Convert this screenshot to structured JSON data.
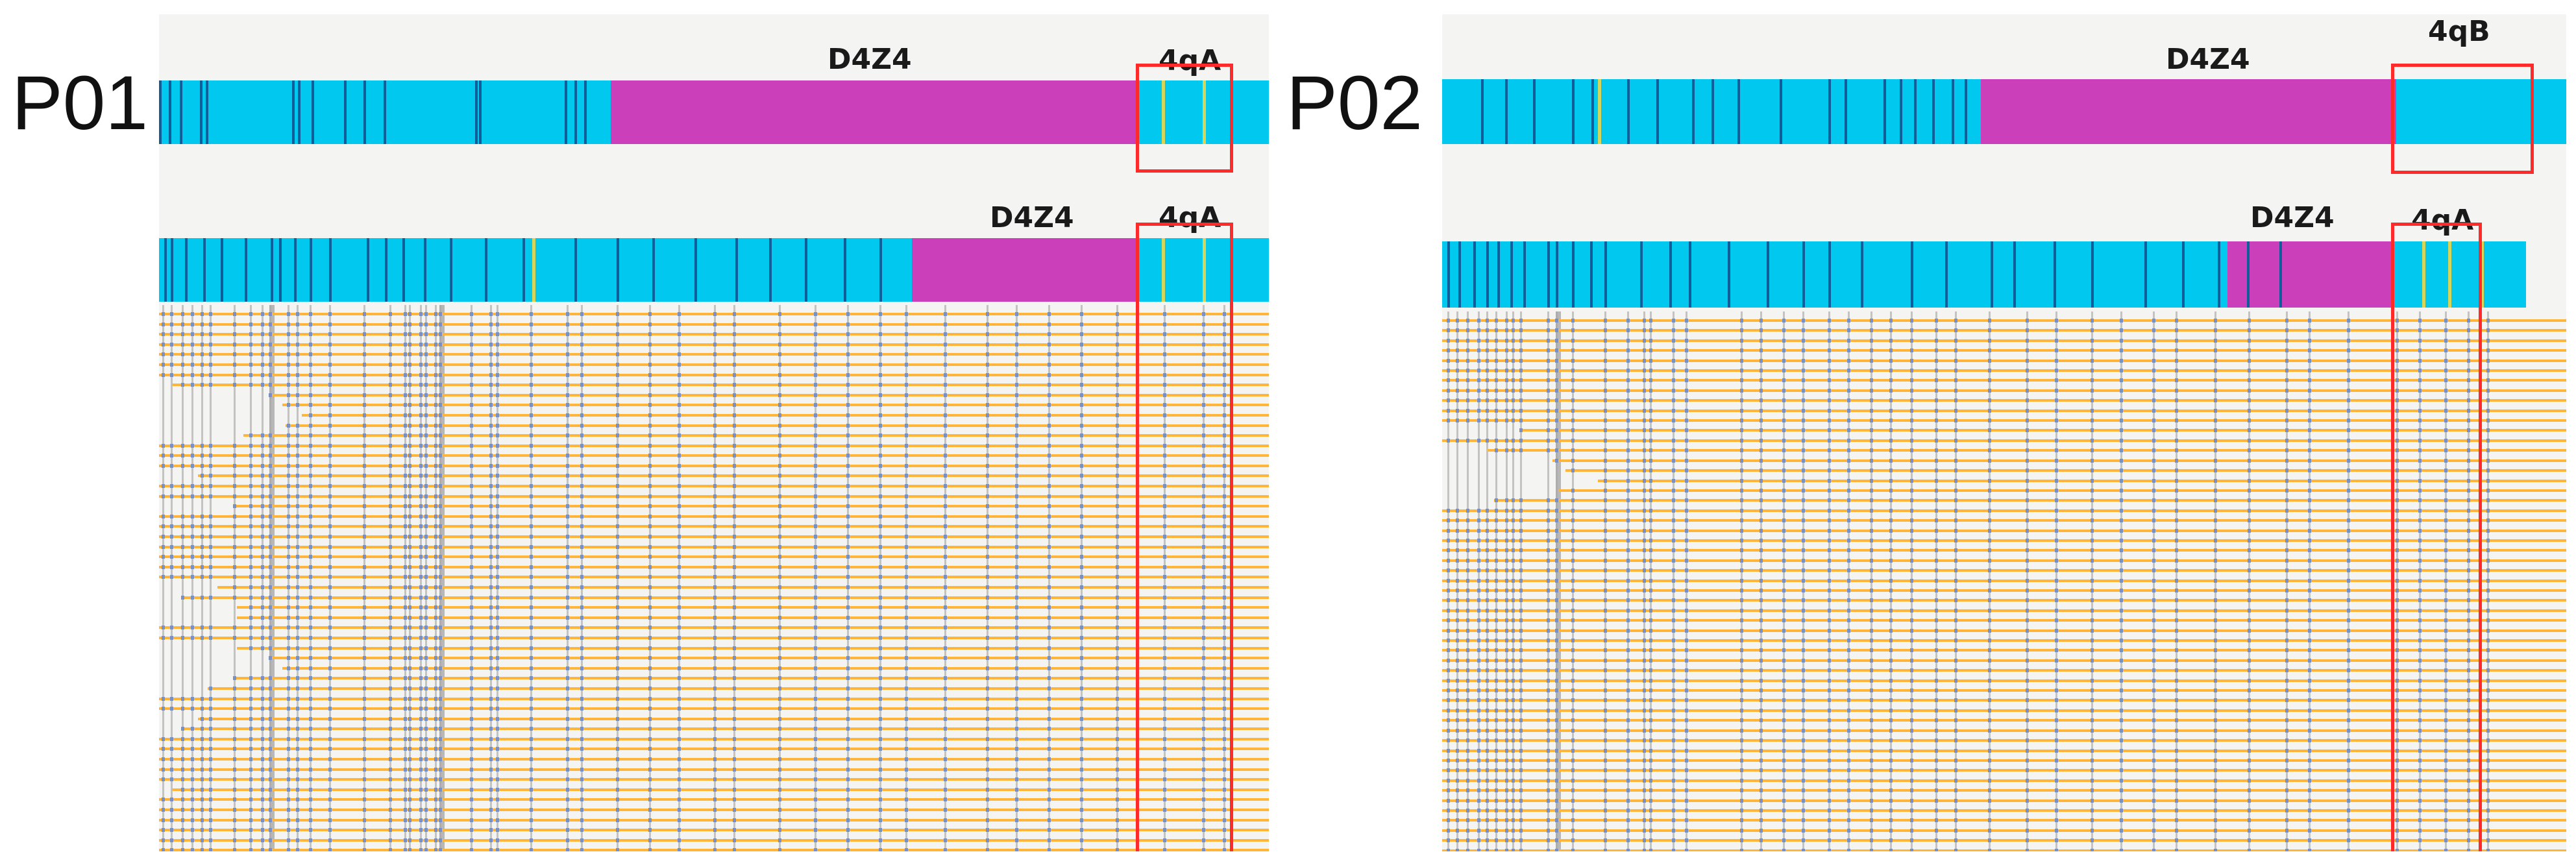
{
  "panels": [
    {
      "id": "P01",
      "label": "P01",
      "allele1": {
        "repeat_label": "D4Z4",
        "haplotype_label": "4qA"
      },
      "allele2": {
        "repeat_label": "D4Z4",
        "haplotype_label": "4qA"
      },
      "read_count": 54
    },
    {
      "id": "P02",
      "label": "P02",
      "allele1": {
        "repeat_label": "D4Z4",
        "haplotype_label": "4qB"
      },
      "allele2": {
        "repeat_label": "D4Z4",
        "haplotype_label": "4qA"
      },
      "read_count": 54
    }
  ],
  "colors": {
    "flank": "#00c8ee",
    "d4z4": "#cc3fba",
    "marker_dark": "#0f5e9a",
    "marker_yellow": "#d6d65a",
    "read": "#ffb43a",
    "read_mark": "#7a8fc2",
    "coverage_line": "#9a9a9a",
    "highlight": "#ff2b2b",
    "panel_bg": "#f4f4f2"
  }
}
